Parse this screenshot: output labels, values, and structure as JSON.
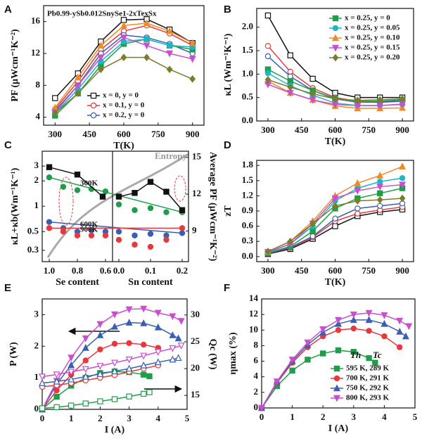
{
  "chart_data": [
    {
      "panel": "A",
      "type": "line",
      "title": "Pb0.99-ySb0.012SnySe1-2xTexSx",
      "xlabel": "T(K)",
      "ylabel": "PF (μWcm⁻¹K⁻²)",
      "x": [
        300,
        400,
        500,
        600,
        700,
        800,
        900
      ],
      "xlim": [
        250,
        950
      ],
      "xticks": [
        300,
        450,
        600,
        750,
        900
      ],
      "ylim": [
        3,
        18
      ],
      "yticks": [
        4,
        8,
        12,
        16
      ],
      "legend": "lower center",
      "series": [
        {
          "name": "x = 0,    y = 0",
          "color": "#111111",
          "marker": "square",
          "filled": false,
          "values": [
            6.4,
            9.5,
            13.5,
            16.2,
            16.3,
            15.0,
            13.3
          ]
        },
        {
          "name": "x = 0.1, y = 0",
          "color": "#e8383d",
          "marker": "circle",
          "filled": false,
          "values": [
            5.0,
            8.5,
            12.5,
            14.8,
            15.5,
            14.5,
            13.0
          ]
        },
        {
          "name": "x = 0.2, y = 0",
          "color": "#3a5fb0",
          "marker": "circle",
          "filled": false,
          "values": [
            4.8,
            8.0,
            12.0,
            14.3,
            14.0,
            13.2,
            12.0
          ]
        },
        {
          "color": "#1f9e49",
          "marker": "square",
          "filled": true,
          "values": [
            4.2,
            7.0,
            10.5,
            13.2,
            13.8,
            13.0,
            12.5
          ]
        },
        {
          "color": "#1fb5c8",
          "marker": "circle",
          "filled": true,
          "values": [
            4.5,
            7.5,
            11.0,
            13.5,
            13.8,
            13.0,
            12.8
          ]
        },
        {
          "color": "#f08a24",
          "marker": "triangle",
          "filled": true,
          "values": [
            5.2,
            9.0,
            13.0,
            15.5,
            15.8,
            14.8,
            13.3
          ]
        },
        {
          "color": "#c94fd0",
          "marker": "triangle-down",
          "filled": true,
          "values": [
            4.6,
            8.0,
            11.5,
            14.0,
            13.0,
            12.0,
            11.3
          ]
        },
        {
          "color": "#7b7d2a",
          "marker": "diamond",
          "filled": true,
          "values": [
            4.5,
            7.0,
            10.0,
            11.5,
            11.5,
            10.0,
            8.8
          ]
        }
      ]
    },
    {
      "panel": "B",
      "type": "line",
      "xlabel": "T(K)",
      "ylabel": "κL (Wm⁻¹K⁻¹)",
      "x": [
        300,
        400,
        500,
        600,
        700,
        800,
        900
      ],
      "xlim": [
        250,
        950
      ],
      "xticks": [
        300,
        450,
        600,
        750,
        900
      ],
      "ylim": [
        0,
        2.4
      ],
      "yticks": [
        {
          "value": 0,
          "label": "0.0"
        },
        0.5,
        {
          "value": 1,
          "label": "1.0"
        },
        1.5,
        {
          "value": 2,
          "label": "2.0"
        }
      ],
      "legend": "upper right",
      "series": [
        {
          "color": "#111111",
          "marker": "square",
          "filled": false,
          "values": [
            2.25,
            1.4,
            0.9,
            0.6,
            0.5,
            0.5,
            0.5
          ]
        },
        {
          "color": "#e8383d",
          "marker": "circle",
          "filled": false,
          "values": [
            1.6,
            1.05,
            0.7,
            0.5,
            0.42,
            0.42,
            0.42
          ]
        },
        {
          "color": "#3a5fb0",
          "marker": "circle",
          "filled": false,
          "values": [
            1.38,
            0.95,
            0.65,
            0.47,
            0.4,
            0.4,
            0.42
          ]
        },
        {
          "name": "x = 0.25, y = 0",
          "color": "#1f9e49",
          "marker": "square",
          "filled": true,
          "values": [
            1.1,
            0.85,
            0.65,
            0.48,
            0.4,
            0.42,
            0.45
          ]
        },
        {
          "name": "x = 0.25, y = 0.05",
          "color": "#1fb5c8",
          "marker": "circle",
          "filled": true,
          "values": [
            1.02,
            0.75,
            0.55,
            0.38,
            0.33,
            0.33,
            0.35
          ]
        },
        {
          "name": "x = 0.25, y = 0.10",
          "color": "#f08a24",
          "marker": "triangle",
          "filled": true,
          "values": [
            0.85,
            0.6,
            0.45,
            0.32,
            0.27,
            0.27,
            0.28
          ]
        },
        {
          "name": "x = 0.25, y = 0.15",
          "color": "#c94fd0",
          "marker": "triangle-down",
          "filled": true,
          "values": [
            0.78,
            0.6,
            0.45,
            0.35,
            0.33,
            0.33,
            0.36
          ]
        },
        {
          "name": "x = 0.25, y = 0.20",
          "color": "#7b7d2a",
          "marker": "diamond",
          "filled": true,
          "values": [
            0.88,
            0.72,
            0.58,
            0.47,
            0.44,
            0.45,
            0.47
          ]
        }
      ]
    },
    {
      "panel": "C",
      "type": "composition",
      "se_label": "Se content",
      "sn_label": "Sn content",
      "ylabel": "κL+κb(Wm⁻¹K⁻¹)",
      "y2label": "Average PF (μWcm⁻¹K⁻²)",
      "annotation": "Entropy",
      "log_y": true,
      "se_xlim": [
        1.05,
        0.55
      ],
      "se_xticks": [
        {
          "value": 1,
          "label": "1.0"
        },
        0.8,
        0.6
      ],
      "sn_xlim": [
        -0.02,
        0.22
      ],
      "sn_xticks": [
        {
          "value": 0,
          "label": "0.0"
        },
        0.1,
        0.2
      ],
      "ylim": [
        0.22,
        4.5
      ],
      "yticks": [
        0.3,
        0.5,
        1,
        2,
        3
      ],
      "y2lim": [
        6.5,
        15.5
      ],
      "y2ticks": [
        9,
        12,
        15
      ],
      "series": [
        {
          "name": "300K",
          "color": "#1f9e49",
          "marker": "circle",
          "se_x": [
            1.0,
            0.9,
            0.8,
            0.7,
            0.6
          ],
          "se": [
            2.2,
            1.7,
            1.55,
            1.6,
            1.5
          ],
          "sn_x": [
            0,
            0.05,
            0.1,
            0.15,
            0.2
          ],
          "sn": [
            1.05,
            0.9,
            0.95,
            0.85,
            0.85
          ]
        },
        {
          "name": "600K",
          "color": "#3a5fb0",
          "marker": "circle",
          "se_x": [
            1.0,
            0.9,
            0.8,
            0.7,
            0.6
          ],
          "se": [
            0.65,
            0.55,
            0.5,
            0.52,
            0.5
          ],
          "sn_x": [
            0,
            0.05,
            0.1,
            0.15,
            0.2
          ],
          "sn": [
            0.5,
            0.45,
            0.47,
            0.45,
            0.48
          ]
        },
        {
          "name": "900K",
          "color": "#e8383d",
          "marker": "circle",
          "se_x": [
            1.0,
            0.9,
            0.8,
            0.7,
            0.6
          ],
          "se": [
            0.55,
            0.5,
            0.45,
            0.45,
            0.45
          ],
          "sn_x": [
            0,
            0.05,
            0.1,
            0.15,
            0.2
          ],
          "sn": [
            0.4,
            0.35,
            0.33,
            0.4,
            0.55
          ]
        },
        {
          "color": "#111111",
          "marker": "square",
          "axis": "y2",
          "se_x": [
            1.0,
            0.8,
            0.62
          ],
          "se": [
            14.2,
            13.6,
            11.8
          ],
          "sn_x": [
            0,
            0.05,
            0.1,
            0.15,
            0.2
          ],
          "sn": [
            11.8,
            12.1,
            13.0,
            12.2,
            10.7
          ]
        }
      ]
    },
    {
      "panel": "D",
      "type": "line",
      "xlabel": "T(K)",
      "ylabel": "zT",
      "x": [
        300,
        400,
        500,
        600,
        700,
        800,
        900
      ],
      "xlim": [
        250,
        950
      ],
      "xticks": [
        300,
        450,
        600,
        750,
        900
      ],
      "ylim": [
        -0.1,
        1.9
      ],
      "yticks": [
        {
          "value": 0,
          "label": "0.0"
        },
        0.3,
        0.6,
        0.9,
        1.2,
        1.5,
        1.8
      ],
      "series": [
        {
          "color": "#111111",
          "marker": "square",
          "filled": false,
          "values": [
            0.05,
            0.15,
            0.35,
            0.6,
            0.8,
            0.88,
            0.93
          ]
        },
        {
          "color": "#e8383d",
          "marker": "circle",
          "filled": false,
          "values": [
            0.06,
            0.17,
            0.38,
            0.7,
            0.85,
            0.92,
            0.98
          ]
        },
        {
          "color": "#3a5fb0",
          "marker": "circle",
          "filled": false,
          "values": [
            0.06,
            0.18,
            0.4,
            0.75,
            0.95,
            1.0,
            1.05
          ]
        },
        {
          "color": "#1f9e49",
          "marker": "square",
          "filled": true,
          "values": [
            0.07,
            0.2,
            0.5,
            0.95,
            1.15,
            1.25,
            1.35
          ]
        },
        {
          "color": "#1fb5c8",
          "marker": "circle",
          "filled": true,
          "values": [
            0.08,
            0.25,
            0.6,
            1.1,
            1.35,
            1.48,
            1.55
          ]
        },
        {
          "color": "#f08a24",
          "marker": "triangle",
          "filled": true,
          "values": [
            0.1,
            0.3,
            0.7,
            1.2,
            1.45,
            1.6,
            1.78
          ]
        },
        {
          "color": "#c94fd0",
          "marker": "triangle-down",
          "filled": true,
          "values": [
            0.09,
            0.25,
            0.65,
            1.15,
            1.3,
            1.38,
            1.42
          ]
        },
        {
          "color": "#7b7d2a",
          "marker": "diamond",
          "filled": true,
          "values": [
            0.1,
            0.3,
            0.65,
            1.0,
            1.1,
            1.12,
            1.15
          ]
        }
      ]
    },
    {
      "panel": "E",
      "type": "line",
      "xlabel": "I (A)",
      "ylabel": "P (W)",
      "y2label": "Qc (W)",
      "xlim": [
        0,
        5
      ],
      "xticks": [
        0,
        1,
        2,
        3,
        4,
        5
      ],
      "ylim": [
        0,
        3.5
      ],
      "yticks": [
        0,
        1,
        2,
        3
      ],
      "y2lim": [
        12.4,
        33
      ],
      "y2ticks": [
        15,
        20,
        25,
        30
      ],
      "series": [
        {
          "color": "#1f9e49",
          "marker": "square",
          "filled": true,
          "x": [
            0,
            0.5,
            1,
            1.5,
            2,
            2.5,
            3,
            3.5,
            3.7
          ],
          "values": [
            0,
            0.4,
            0.75,
            1.0,
            1.15,
            1.2,
            1.18,
            1.1,
            1.05
          ]
        },
        {
          "color": "#e8383d",
          "marker": "circle",
          "filled": true,
          "x": [
            0,
            0.5,
            1,
            1.5,
            2,
            2.5,
            3,
            3.5,
            4
          ],
          "values": [
            0,
            0.6,
            1.1,
            1.55,
            1.9,
            2.08,
            2.1,
            2.05,
            1.95
          ]
        },
        {
          "color": "#3a5fb0",
          "marker": "triangle",
          "filled": true,
          "x": [
            0,
            0.5,
            1,
            1.5,
            2,
            2.5,
            3,
            3.5,
            4,
            4.5,
            4.7
          ],
          "values": [
            0,
            0.8,
            1.4,
            1.95,
            2.35,
            2.62,
            2.75,
            2.73,
            2.6,
            2.35,
            2.25
          ]
        },
        {
          "color": "#c94fd0",
          "marker": "triangle-down",
          "filled": true,
          "x": [
            0,
            0.5,
            1,
            1.5,
            2,
            2.5,
            3,
            3.5,
            4,
            4.5,
            4.8
          ],
          "values": [
            0,
            0.9,
            1.64,
            2.25,
            2.7,
            3.01,
            3.17,
            3.19,
            3.06,
            2.95,
            2.8
          ]
        },
        {
          "color": "#1f9e49",
          "marker": "square",
          "filled": false,
          "axis": "y2",
          "x": [
            0,
            0.5,
            1,
            1.5,
            2,
            2.5,
            3,
            3.5,
            3.7
          ],
          "values": [
            12.6,
            12.8,
            13.1,
            13.5,
            13.9,
            14.3,
            14.8,
            15.3,
            15.6
          ]
        },
        {
          "color": "#e8383d",
          "marker": "circle",
          "filled": false,
          "axis": "y2",
          "x": [
            0,
            0.5,
            1,
            1.5,
            2,
            2.5,
            3,
            3.5,
            4
          ],
          "values": [
            16.6,
            16.9,
            17.3,
            17.8,
            18.3,
            18.8,
            19.4,
            20.0,
            20.6
          ]
        },
        {
          "color": "#3a5fb0",
          "marker": "triangle",
          "filled": false,
          "axis": "y2",
          "x": [
            0,
            0.5,
            1,
            1.5,
            2,
            2.5,
            3,
            3.5,
            4,
            4.5,
            4.7
          ],
          "values": [
            17.3,
            17.6,
            18.0,
            18.5,
            19.0,
            19.5,
            20.0,
            20.6,
            21.2,
            21.7,
            22.0
          ]
        },
        {
          "color": "#c94fd0",
          "marker": "triangle-down",
          "filled": false,
          "axis": "y2",
          "x": [
            0,
            0.5,
            1,
            1.5,
            2,
            2.5,
            3,
            3.5,
            4,
            4.5,
            4.8
          ],
          "values": [
            18.5,
            18.9,
            19.4,
            19.9,
            20.5,
            21.1,
            21.7,
            22.4,
            23.1,
            23.8,
            24.3
          ]
        }
      ]
    },
    {
      "panel": "F",
      "type": "line",
      "xlabel": "I (A)",
      "ylabel": "ηmax (%)",
      "xlim": [
        0,
        5
      ],
      "xticks": [
        0,
        1,
        2,
        3,
        4,
        5
      ],
      "ylim": [
        0,
        14
      ],
      "yticks": [
        0,
        2,
        4,
        6,
        8,
        10,
        12,
        14
      ],
      "legend": "lower right",
      "legend_title": [
        "Th",
        "Tc"
      ],
      "series": [
        {
          "name": "595 K, 289 K",
          "color": "#1f9e49",
          "marker": "square",
          "filled": true,
          "x": [
            0,
            0.5,
            1,
            1.5,
            2,
            2.5,
            3,
            3.5,
            3.7
          ],
          "values": [
            0,
            2.8,
            4.8,
            6.2,
            7.0,
            7.4,
            7.2,
            6.4,
            5.8
          ]
        },
        {
          "name": "700 K, 291 K",
          "color": "#e8383d",
          "marker": "circle",
          "filled": true,
          "x": [
            0,
            0.5,
            1,
            1.5,
            2,
            2.5,
            3,
            3.5,
            4,
            4.5
          ],
          "values": [
            0,
            3.2,
            5.8,
            7.8,
            9.2,
            10.0,
            10.2,
            9.9,
            9.2,
            7.8
          ]
        },
        {
          "name": "750 K, 292 K",
          "color": "#3a5fb0",
          "marker": "triangle",
          "filled": true,
          "x": [
            0,
            0.5,
            1,
            1.5,
            2,
            2.5,
            3,
            3.5,
            4,
            4.5,
            4.7
          ],
          "values": [
            0,
            3.3,
            6.0,
            8.1,
            9.7,
            10.8,
            11.3,
            11.3,
            10.8,
            9.8,
            9.2
          ]
        },
        {
          "name": "800 K, 293 K",
          "color": "#c94fd0",
          "marker": "triangle-down",
          "filled": true,
          "x": [
            0,
            0.5,
            1,
            1.5,
            2,
            2.5,
            3,
            3.5,
            4,
            4.5,
            4.8
          ],
          "values": [
            0,
            3.4,
            6.2,
            8.4,
            10.1,
            11.3,
            12.0,
            12.2,
            11.9,
            11.2,
            10.5
          ]
        }
      ]
    }
  ]
}
